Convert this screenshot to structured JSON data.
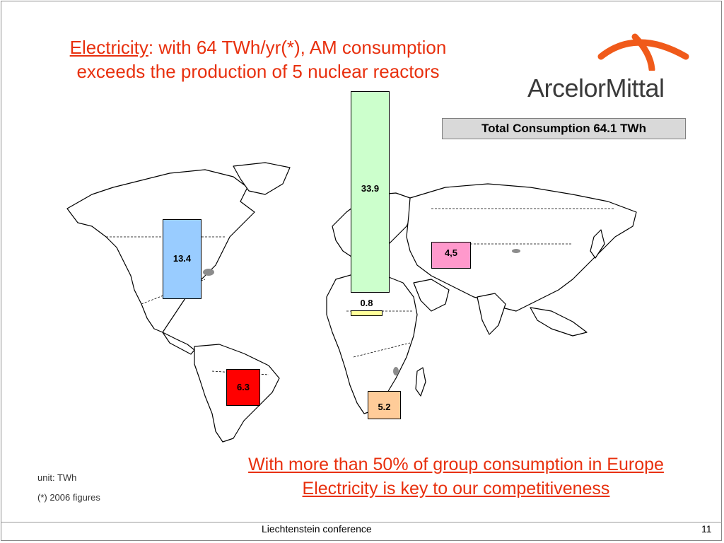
{
  "title": {
    "underlined": "Electricity",
    "rest_line1": ": with 64 TWh/yr(*), AM consumption",
    "line2": "exceeds the production of 5 nuclear reactors"
  },
  "logo": {
    "text": "ArcelorMittal",
    "color": "#f05a1a"
  },
  "total_box": "Total Consumption 64.1 TWh",
  "chart_data": {
    "type": "bar",
    "title": "",
    "unit": "TWh",
    "categories": [
      "North America",
      "Europe",
      "North Africa",
      "CIS",
      "South America",
      "South Africa"
    ],
    "values": [
      13.4,
      33.9,
      0.8,
      4.5,
      6.3,
      5.2
    ],
    "data_labels": [
      "13.4",
      "33.9",
      "0.8",
      "4,5",
      "6.3",
      "5.2"
    ],
    "colors": [
      "#99ccff",
      "#ccffcc",
      "#ffff99",
      "#ff99cc",
      "#ff0000",
      "#ffcc99"
    ],
    "total": 64.1
  },
  "conclusion": {
    "line1": "With more than 50% of group consumption in Europe",
    "line2": "Electricity is key to our competitiveness"
  },
  "notes": {
    "unit": "unit: TWh",
    "year": "(*) 2006 figures"
  },
  "footer": {
    "center": "Liechtenstein conference",
    "page": "11"
  }
}
